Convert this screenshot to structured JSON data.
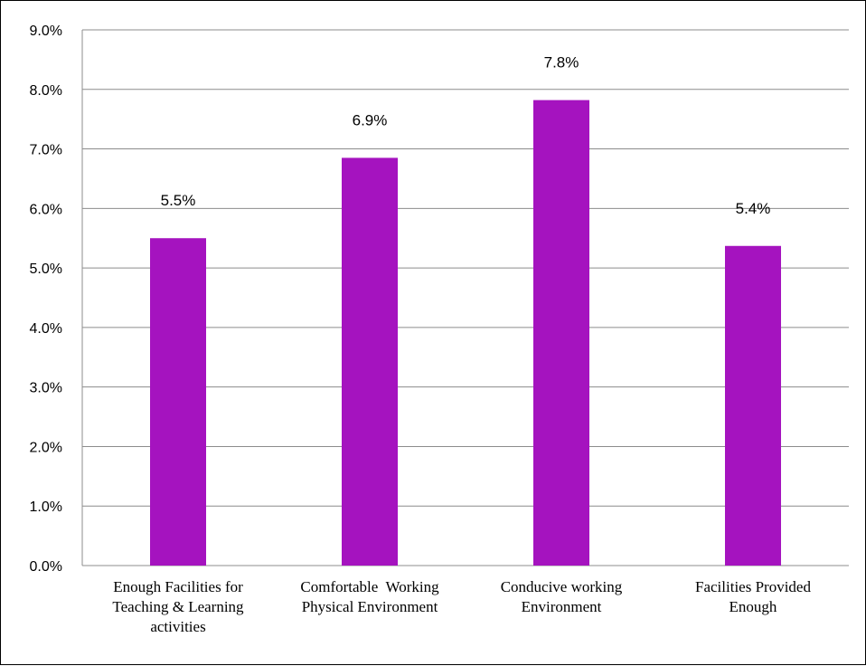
{
  "chart_data": {
    "type": "bar",
    "title": "",
    "xlabel": "",
    "ylabel": "",
    "categories": [
      [
        "Enough Facilities for",
        "Teaching & Learning",
        "activities"
      ],
      [
        "Comfortable  Working",
        "Physical Environment"
      ],
      [
        "Conducive working",
        "Environment"
      ],
      [
        "Facilities Provided",
        "Enough"
      ]
    ],
    "values": [
      5.5,
      6.85,
      7.82,
      5.37
    ],
    "data_labels": [
      "5.5%",
      "6.9%",
      "7.8%",
      "5.4%"
    ],
    "ylim": [
      0,
      9
    ],
    "yticks": [
      0,
      1,
      2,
      3,
      4,
      5,
      6,
      7,
      8,
      9
    ],
    "ytick_labels": [
      "0.0%",
      "1.0%",
      "2.0%",
      "3.0%",
      "4.0%",
      "5.0%",
      "6.0%",
      "7.0%",
      "8.0%",
      "9.0%"
    ],
    "grid": true,
    "legend": "none",
    "colors": {
      "bar": "#A513BF",
      "grid": "#8c8c8c",
      "axis": "#8c8c8c",
      "text": "#000000"
    }
  }
}
